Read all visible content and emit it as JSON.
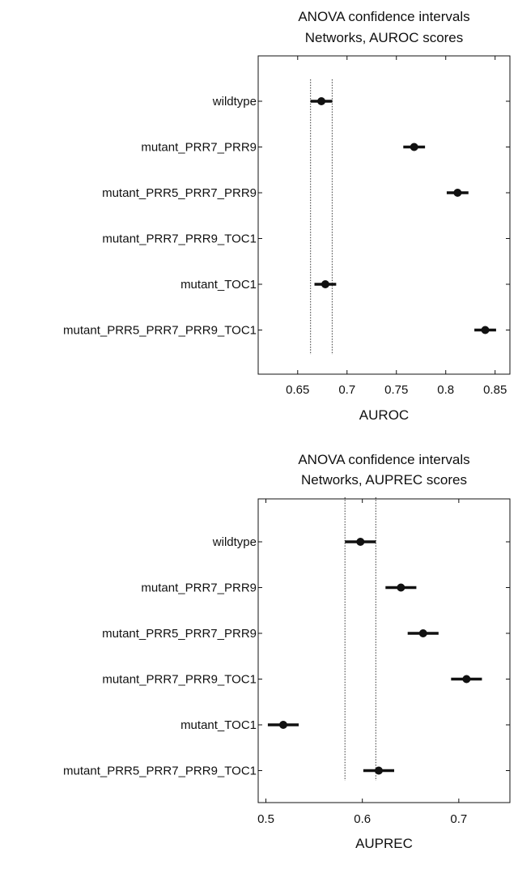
{
  "charts": [
    {
      "title_lines": [
        "ANOVA confidence intervals",
        "Networks, AUROC scores"
      ],
      "xlabel": "AUROC",
      "xticks": [
        "0.65",
        "0.7",
        "0.75",
        "0.8",
        "0.85"
      ],
      "chart_data": {
        "type": "scatter",
        "title": "ANOVA confidence intervals Networks, AUROC scores",
        "xlabel": "AUROC",
        "xlim": [
          0.61,
          0.865
        ],
        "categories": [
          "wildtype",
          "mutant_PRR7_PRR9",
          "mutant_PRR5_PRR7_PRR9",
          "mutant_PRR7_PRR9_TOC1",
          "mutant_TOC1",
          "mutant_PRR5_PRR7_PRR9_TOC1"
        ],
        "means": [
          0.674,
          0.768,
          0.812,
          null,
          0.678,
          0.84
        ],
        "lower": [
          0.663,
          0.757,
          0.801,
          null,
          0.667,
          0.829
        ],
        "upper": [
          0.685,
          0.779,
          0.823,
          null,
          0.689,
          0.851
        ],
        "reference_lines": [
          0.663,
          0.685
        ],
        "grid": false
      }
    },
    {
      "title_lines": [
        "ANOVA confidence intervals",
        "Networks, AUPREC scores"
      ],
      "xlabel": "AUPREC",
      "xticks": [
        "0.5",
        "0.6",
        "0.7"
      ],
      "chart_data": {
        "type": "scatter",
        "title": "ANOVA confidence intervals Networks, AUPREC scores",
        "xlabel": "AUPREC",
        "xlim": [
          0.492,
          0.753
        ],
        "categories": [
          "wildtype",
          "mutant_PRR7_PRR9",
          "mutant_PRR5_PRR7_PRR9",
          "mutant_PRR7_PRR9_TOC1",
          "mutant_TOC1",
          "mutant_PRR5_PRR7_PRR9_TOC1"
        ],
        "means": [
          0.598,
          0.64,
          0.663,
          0.708,
          0.518,
          0.617
        ],
        "lower": [
          0.582,
          0.624,
          0.647,
          0.692,
          0.502,
          0.601
        ],
        "upper": [
          0.614,
          0.656,
          0.679,
          0.724,
          0.534,
          0.633
        ],
        "reference_lines": [
          0.582,
          0.614
        ],
        "grid": false
      }
    }
  ]
}
